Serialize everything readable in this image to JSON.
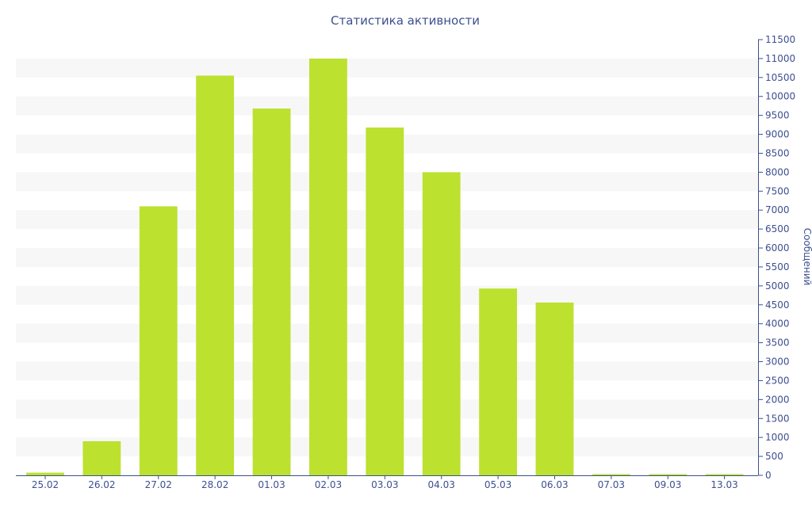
{
  "chart_data": {
    "type": "bar",
    "title": "Статистика активности",
    "xlabel": "",
    "ylabel": "Сообщений",
    "categories": [
      "25.02",
      "26.02",
      "27.02",
      "28.02",
      "01.03",
      "02.03",
      "03.03",
      "04.03",
      "05.03",
      "06.03",
      "07.03",
      "09.03",
      "13.03"
    ],
    "values": [
      70,
      900,
      7100,
      10550,
      9680,
      11000,
      9180,
      8000,
      4930,
      4560,
      20,
      20,
      15
    ],
    "ylim": [
      0,
      11500
    ],
    "y_ticks": [
      0,
      500,
      1000,
      1500,
      2000,
      2500,
      3000,
      3500,
      4000,
      4500,
      5000,
      5500,
      6000,
      6500,
      7000,
      7500,
      8000,
      8500,
      9000,
      9500,
      10000,
      10500,
      11000,
      11500
    ],
    "y_axis_side": "right",
    "grid": "alternating horizontal bands",
    "colors": {
      "bar": "#bce12f",
      "axis": "#3d4f8f",
      "band": "#f7f7f7"
    }
  }
}
